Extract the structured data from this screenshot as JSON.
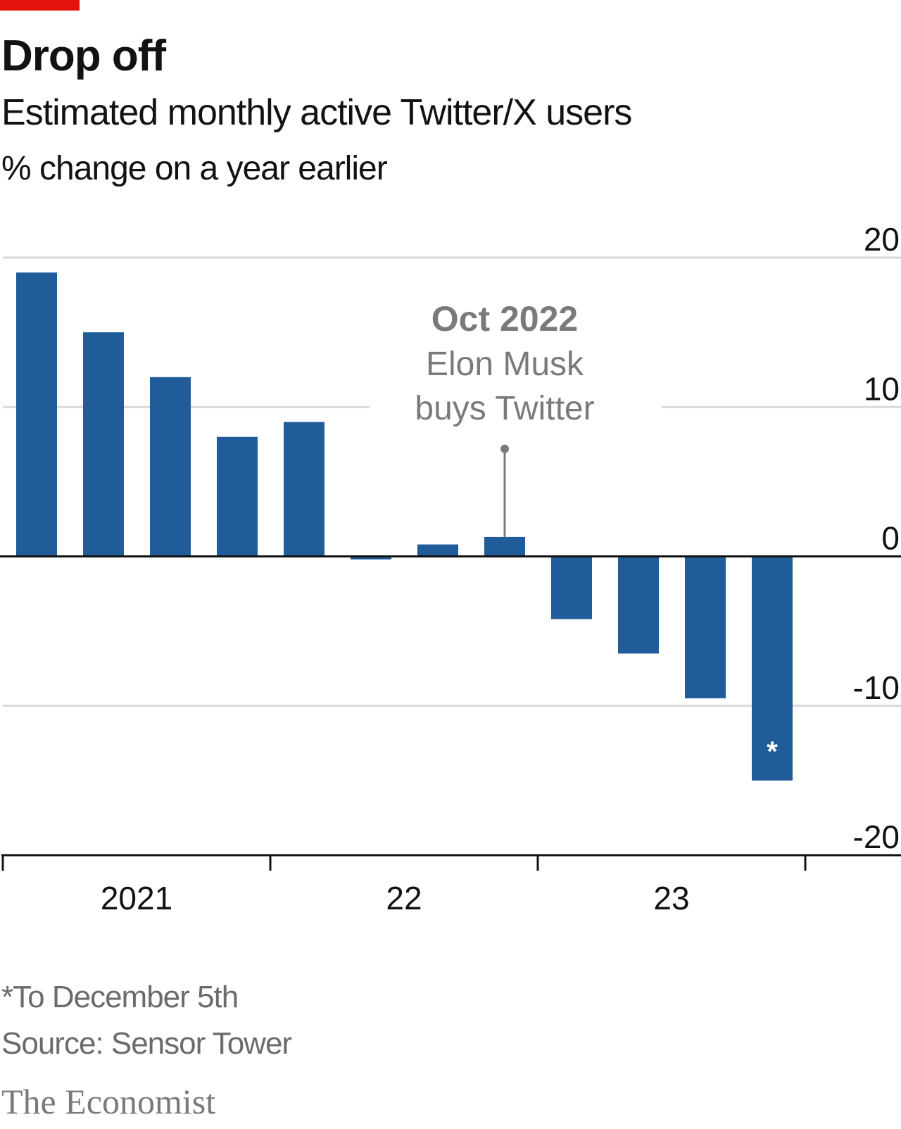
{
  "colors": {
    "accent": "#e3120b",
    "bar": "#1f5c99",
    "grid": "#d9d9d9",
    "annotation": "#7a7a7a",
    "axis": "#121212"
  },
  "title": "Drop off",
  "subtitle": "Estimated monthly active Twitter/X users",
  "unit": "% change on a year earlier",
  "footnote": "*To December 5th",
  "source": "Source: Sensor Tower",
  "brand": "The Economist",
  "chart_data": {
    "type": "bar",
    "categories": [
      "2021 Q1",
      "2021 Q2",
      "2021 Q3",
      "2021 Q4",
      "2022 Q1",
      "2022 Q2",
      "2022 Q3",
      "2022 Q4",
      "2023 Q1",
      "2023 Q2",
      "2023 Q3",
      "2023 Q4"
    ],
    "values": [
      19.0,
      15.0,
      12.0,
      8.0,
      9.0,
      -0.2,
      0.8,
      1.3,
      -4.2,
      -6.5,
      -9.5,
      -15.0
    ],
    "ylim": [
      -20,
      20
    ],
    "yticks": [
      20,
      10,
      0,
      -10,
      -20
    ],
    "ytick_labels": [
      "20",
      "10",
      "0",
      "-10",
      "-20"
    ],
    "year_labels": [
      {
        "label": "2021",
        "year_index": 0
      },
      {
        "label": "22",
        "year_index": 1
      },
      {
        "label": "23",
        "year_index": 2
      }
    ],
    "grid": true,
    "y_axis_side": "right",
    "bar_markers": [
      {
        "index": 11,
        "text": "*"
      }
    ],
    "annotation": {
      "bar_index": 7,
      "value": 7.2,
      "title": "Oct 2022",
      "lines": [
        "Elon Musk",
        "buys Twitter"
      ]
    }
  }
}
